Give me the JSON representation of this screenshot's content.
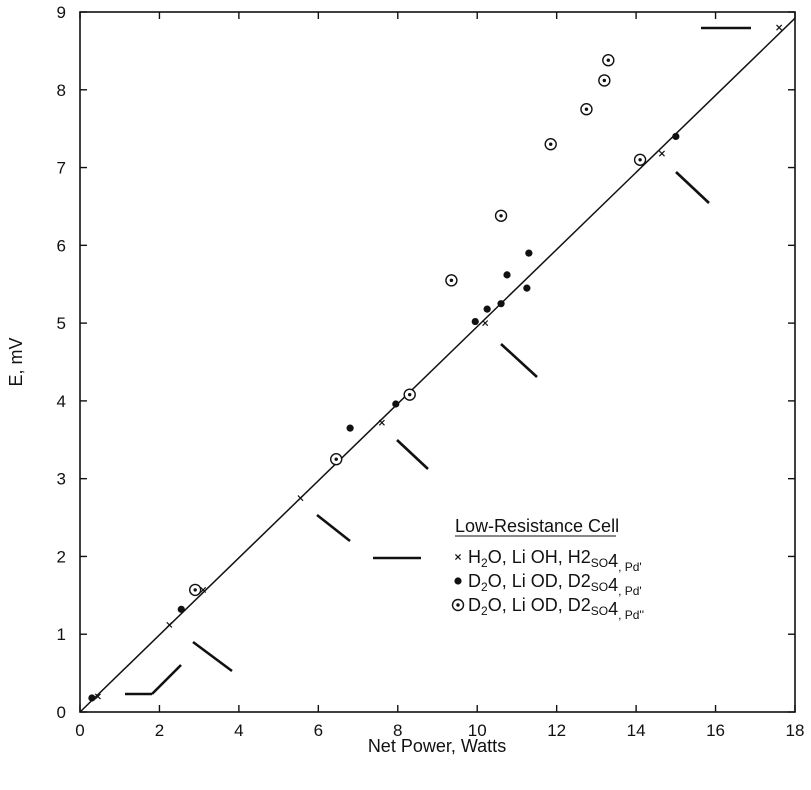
{
  "chart_data": {
    "type": "scatter",
    "title": "",
    "xlabel": "Net Power, Watts",
    "ylabel": "E, mV",
    "xlim": [
      0,
      18
    ],
    "ylim": [
      0,
      9
    ],
    "x_ticks": [
      0,
      2,
      4,
      6,
      8,
      10,
      12,
      14,
      16,
      18
    ],
    "y_ticks": [
      0,
      1,
      2,
      3,
      4,
      5,
      6,
      7,
      8,
      9
    ],
    "grid": false,
    "legend": {
      "title": "Low-Resistance Cell",
      "placement": "middle-right",
      "entries": [
        {
          "symbol": "×",
          "parts": [
            [
              "H",
              "2",
              "O, Li OH, H"
            ],
            [
              "2",
              "SO"
            ],
            [
              "4",
              ", Pd'"
            ]
          ]
        },
        {
          "symbol": "●",
          "parts": [
            [
              "D",
              "2",
              "O, Li OD, D"
            ],
            [
              "2",
              "SO"
            ],
            [
              "4",
              ", Pd'"
            ]
          ]
        },
        {
          "symbol": "⊙",
          "parts": [
            [
              "D",
              "2",
              "O, Li OD, D"
            ],
            [
              "2",
              "SO"
            ],
            [
              "4",
              ", Pd''"
            ]
          ]
        }
      ]
    },
    "series": [
      {
        "marker": "x",
        "points": [
          [
            0.45,
            0.2
          ],
          [
            2.25,
            1.12
          ],
          [
            3.1,
            1.57
          ],
          [
            5.55,
            2.75
          ],
          [
            7.6,
            3.72
          ],
          [
            10.2,
            5.0
          ],
          [
            14.65,
            7.18
          ],
          [
            17.6,
            8.8
          ]
        ]
      },
      {
        "marker": "dot",
        "points": [
          [
            0.3,
            0.18
          ],
          [
            2.55,
            1.32
          ],
          [
            6.8,
            3.65
          ],
          [
            7.95,
            3.96
          ],
          [
            9.95,
            5.02
          ],
          [
            10.25,
            5.18
          ],
          [
            10.6,
            5.25
          ],
          [
            10.75,
            5.62
          ],
          [
            11.25,
            5.45
          ],
          [
            11.3,
            5.9
          ],
          [
            15.0,
            7.4
          ]
        ]
      },
      {
        "marker": "ring",
        "points": [
          [
            2.9,
            1.57
          ],
          [
            6.45,
            3.25
          ],
          [
            8.3,
            4.08
          ],
          [
            9.35,
            5.55
          ],
          [
            10.6,
            6.38
          ],
          [
            11.85,
            7.3
          ],
          [
            12.75,
            7.75
          ],
          [
            13.2,
            8.12
          ],
          [
            13.3,
            8.38
          ],
          [
            14.1,
            7.1
          ]
        ]
      }
    ],
    "fit_line": {
      "x1": 0.0,
      "y1": 0.0,
      "x2": 18.0,
      "y2": 8.92
    }
  }
}
